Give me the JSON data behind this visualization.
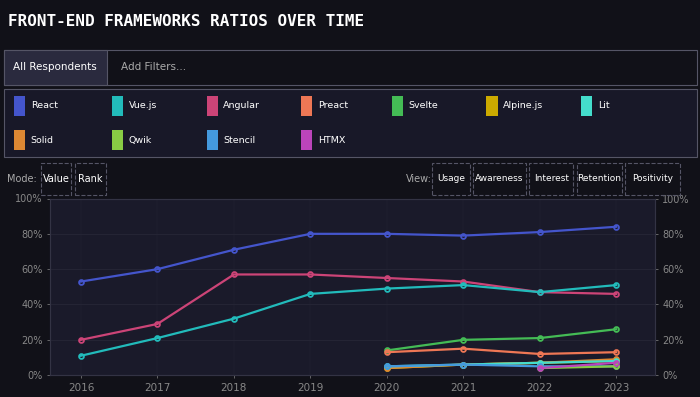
{
  "title": "FRONT-END FRAMEWORKS RATIOS OVER TIME",
  "bg_color": "#111118",
  "plot_bg": "#1a1a2a",
  "years": [
    2016,
    2017,
    2018,
    2019,
    2020,
    2021,
    2022,
    2023
  ],
  "series_actual": [
    {
      "name": "React",
      "color": "#4455cc",
      "values": [
        53,
        60,
        71,
        80,
        80,
        79,
        81,
        84
      ]
    },
    {
      "name": "Angular",
      "color": "#cc4477",
      "values": [
        20,
        29,
        57,
        57,
        55,
        53,
        47,
        46
      ]
    },
    {
      "name": "Vue.js",
      "color": "#22bbbb",
      "values": [
        11,
        21,
        32,
        46,
        49,
        51,
        47,
        51
      ]
    },
    {
      "name": "Svelte",
      "color": "#44bb55",
      "values": [
        null,
        null,
        null,
        null,
        14,
        20,
        21,
        26
      ]
    },
    {
      "name": "Preact",
      "color": "#ee7755",
      "values": [
        null,
        null,
        null,
        null,
        13,
        15,
        12,
        13
      ]
    },
    {
      "name": "Alpine.js",
      "color": "#ccaa00",
      "values": [
        null,
        null,
        null,
        null,
        4,
        6,
        7,
        8
      ]
    },
    {
      "name": "Solid",
      "color": "#dd8833",
      "values": [
        null,
        null,
        null,
        null,
        4,
        6,
        7,
        9
      ]
    },
    {
      "name": "Lit",
      "color": "#44ddcc",
      "values": [
        null,
        null,
        null,
        null,
        5,
        6,
        7,
        8
      ]
    },
    {
      "name": "Stencil",
      "color": "#4499dd",
      "values": [
        null,
        null,
        null,
        null,
        5,
        6,
        5,
        5
      ]
    },
    {
      "name": "Qwik",
      "color": "#88cc44",
      "values": [
        null,
        null,
        null,
        null,
        null,
        null,
        4,
        5
      ]
    },
    {
      "name": "HTMX",
      "color": "#bb44bb",
      "values": [
        null,
        null,
        null,
        null,
        null,
        null,
        4,
        7
      ]
    }
  ],
  "legend_row1": [
    {
      "name": "React",
      "color": "#4455cc"
    },
    {
      "name": "Vue.js",
      "color": "#22bbbb"
    },
    {
      "name": "Angular",
      "color": "#cc4477"
    },
    {
      "name": "Preact",
      "color": "#ee7755"
    },
    {
      "name": "Svelte",
      "color": "#44bb55"
    },
    {
      "name": "Alpine.js",
      "color": "#ccaa00"
    },
    {
      "name": "Lit",
      "color": "#44ddcc"
    }
  ],
  "legend_row2": [
    {
      "name": "Solid",
      "color": "#dd8833"
    },
    {
      "name": "Qwik",
      "color": "#88cc44"
    },
    {
      "name": "Stencil",
      "color": "#4499dd"
    },
    {
      "name": "HTMX",
      "color": "#bb44bb"
    }
  ],
  "mode_labels": [
    "Value",
    "Rank"
  ],
  "view_labels": [
    "Usage",
    "Awareness",
    "Interest",
    "Retention",
    "Positivity"
  ],
  "tab1": "All Respondents",
  "tab2": "Add Filters...",
  "border_color": "#555566",
  "text_color_dim": "#aaaaaa",
  "text_color_bright": "#ffffff",
  "grid_color": "#2a2a3a",
  "tick_color": "#888888",
  "yticks": [
    0,
    20,
    40,
    60,
    80,
    100
  ]
}
